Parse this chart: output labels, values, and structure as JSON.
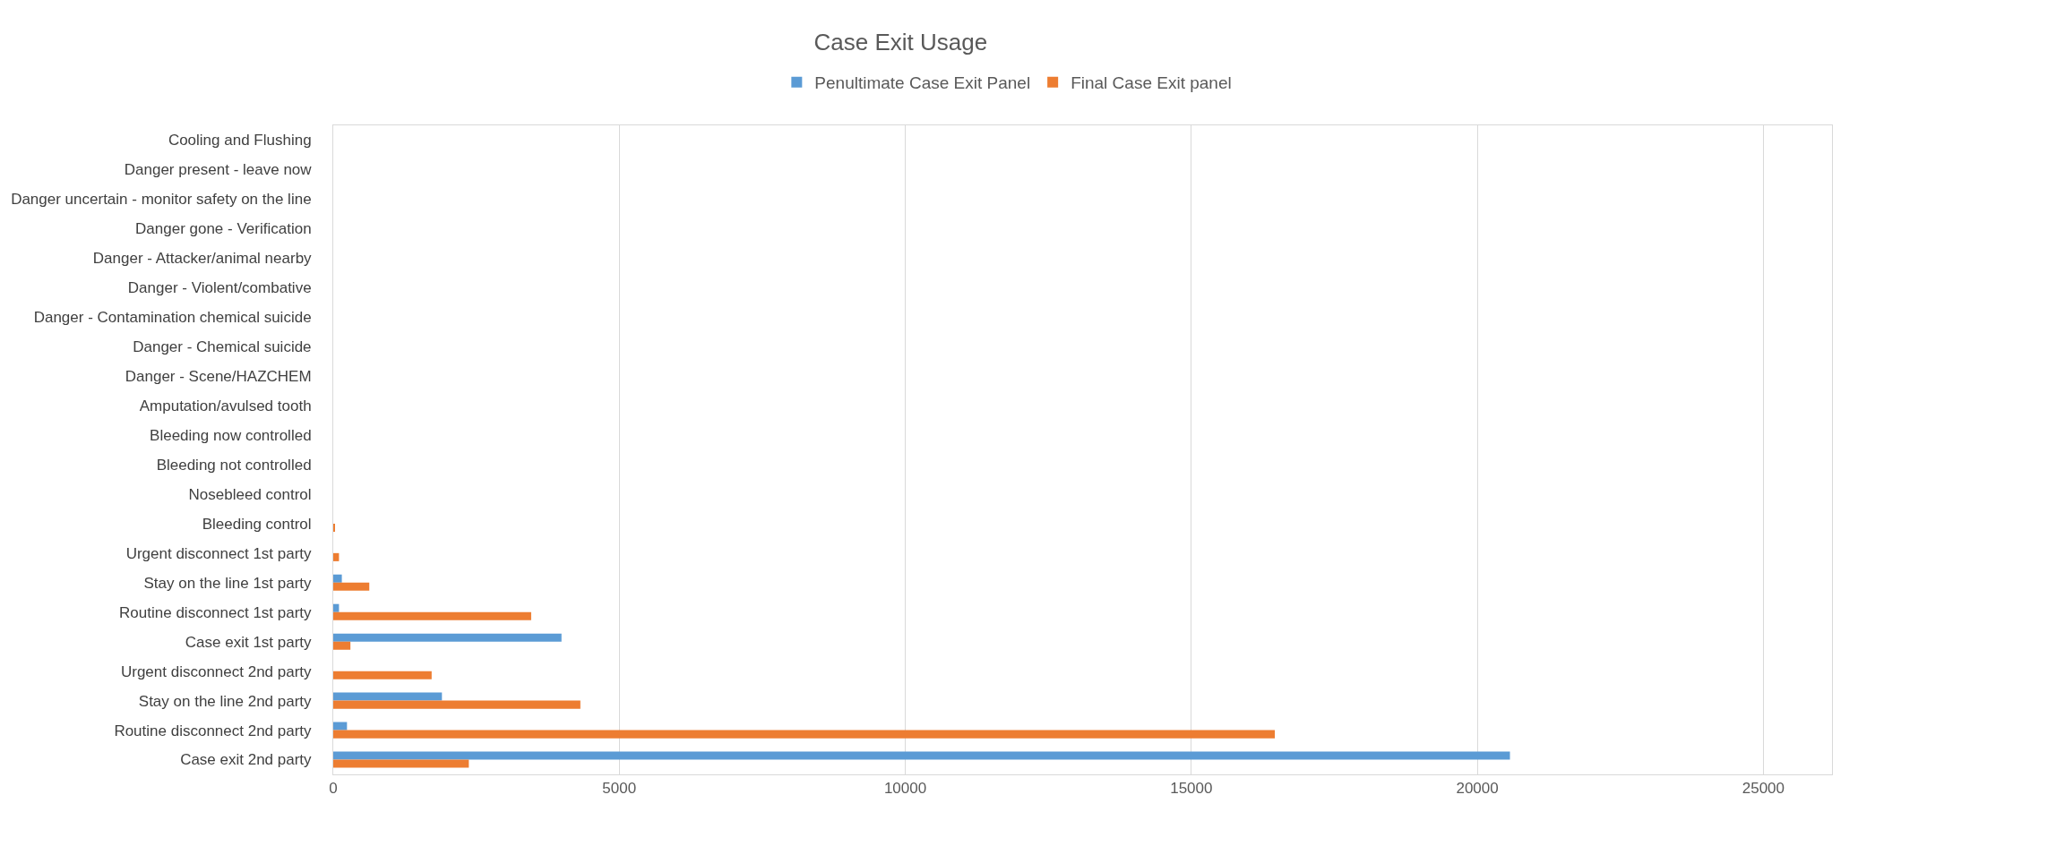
{
  "chart_data": {
    "type": "bar",
    "orientation": "horizontal",
    "title": "Case Exit Usage",
    "categories": [
      "Cooling and Flushing",
      "Danger present - leave now",
      "Danger uncertain - monitor safety on the line",
      "Danger gone - Verification",
      "Danger - Attacker/animal nearby",
      "Danger - Violent/combative",
      "Danger - Contamination chemical suicide",
      "Danger - Chemical suicide",
      "Danger - Scene/HAZCHEM",
      "Amputation/avulsed tooth",
      "Bleeding now controlled",
      "Bleeding not controlled",
      "Nosebleed control",
      "Bleeding control",
      "Urgent disconnect 1st party",
      "Stay on the line 1st party",
      "Routine disconnect 1st party",
      "Case exit 1st party",
      "Urgent disconnect 2nd party",
      "Stay on the line 2nd party",
      "Routine disconnect 2nd party",
      "Case exit 2nd party"
    ],
    "series": [
      {
        "name": "Penultimate Case Exit Panel",
        "color": "#5b9bd5",
        "values": [
          0,
          0,
          0,
          0,
          0,
          0,
          0,
          0,
          0,
          0,
          0,
          0,
          0,
          0,
          0,
          150,
          100,
          3990,
          0,
          1900,
          240,
          20570
        ]
      },
      {
        "name": "Final Case Exit panel",
        "color": "#ed7d31",
        "values": [
          0,
          0,
          0,
          0,
          0,
          0,
          0,
          0,
          0,
          0,
          0,
          0,
          0,
          30,
          100,
          630,
          3460,
          300,
          1720,
          4320,
          16460,
          2370
        ]
      }
    ],
    "xlim": [
      0,
      26200
    ],
    "xticks": [
      0,
      5000,
      10000,
      15000,
      20000,
      25000
    ],
    "grid": "x",
    "legend": "top"
  }
}
